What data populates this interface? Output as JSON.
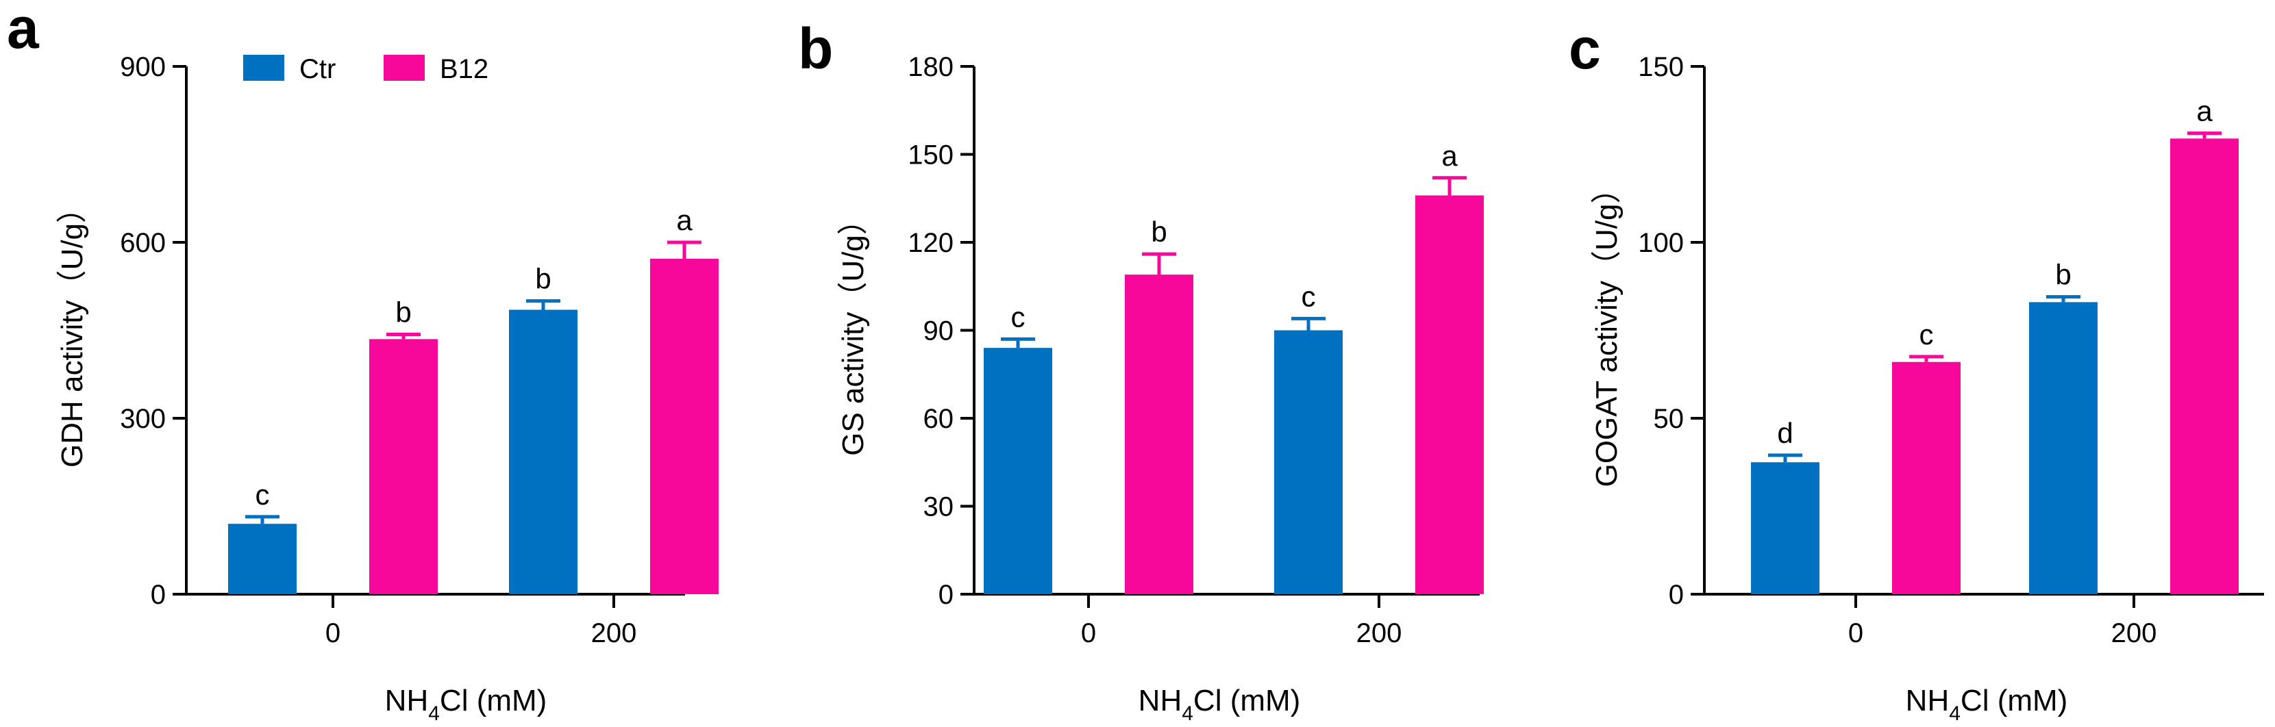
{
  "chart_data": [
    {
      "type": "bar",
      "panel": "a",
      "categories": [
        "0",
        "200"
      ],
      "series": [
        {
          "name": "Ctr",
          "values": [
            120,
            485
          ],
          "errors": [
            12,
            15
          ],
          "labels": [
            "c",
            "b"
          ]
        },
        {
          "name": "B12",
          "values": [
            435,
            572
          ],
          "errors": [
            8,
            28
          ],
          "labels": [
            "b",
            "a"
          ]
        }
      ],
      "xlabel_main": "NH",
      "xlabel_sub": "4",
      "xlabel_rest": "Cl (mM)",
      "ylabel": "GDH activity（U/g）",
      "ylim": [
        0,
        900
      ],
      "yticks": [
        "0",
        "300",
        "600",
        "900"
      ],
      "legend": "top-left"
    },
    {
      "type": "bar",
      "panel": "b",
      "categories": [
        "0",
        "200"
      ],
      "series": [
        {
          "name": "Ctr",
          "values": [
            84,
            90
          ],
          "errors": [
            3,
            4
          ],
          "labels": [
            "c",
            "c"
          ]
        },
        {
          "name": "B12",
          "values": [
            109,
            136
          ],
          "errors": [
            7,
            6
          ],
          "labels": [
            "b",
            "a"
          ]
        }
      ],
      "xlabel_main": "NH",
      "xlabel_sub": "4",
      "xlabel_rest": "Cl (mM)",
      "ylabel": "GS activity（U/g）",
      "ylim": [
        0,
        180
      ],
      "yticks": [
        "0",
        "30",
        "60",
        "90",
        "120",
        "150",
        "180"
      ],
      "legend": "none"
    },
    {
      "type": "bar",
      "panel": "c",
      "categories": [
        "0",
        "200"
      ],
      "series": [
        {
          "name": "Ctr",
          "values": [
            37.5,
            83
          ],
          "errors": [
            2,
            1.5
          ],
          "labels": [
            "d",
            "b"
          ]
        },
        {
          "name": "B12",
          "values": [
            66,
            129.5
          ],
          "errors": [
            1.5,
            1.5
          ],
          "labels": [
            "c",
            "a"
          ]
        }
      ],
      "xlabel_main": "NH",
      "xlabel_sub": "4",
      "xlabel_rest": "Cl (mM)",
      "ylabel": "GOGAT activity（U/g）",
      "ylim": [
        0,
        150
      ],
      "yticks": [
        "0",
        "50",
        "100",
        "150"
      ],
      "legend": "none"
    }
  ],
  "colors": {
    "Ctr": "#0070C0",
    "B12": "#F7089A"
  }
}
